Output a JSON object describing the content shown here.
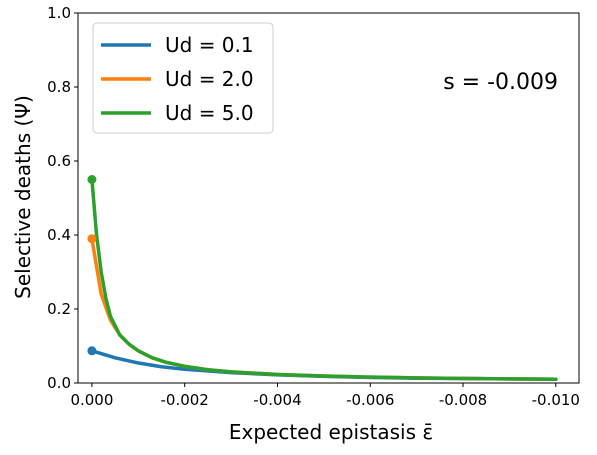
{
  "chart_data": {
    "type": "line",
    "xlabel": "Expected epistasis ε̄",
    "ylabel": "Selective deaths (Ψ)",
    "annotation": "s = -0.009",
    "xlim": [
      0.0003,
      -0.0105
    ],
    "ylim": [
      0.0,
      1.0
    ],
    "x_ticks": [
      0.0,
      -0.002,
      -0.004,
      -0.006,
      -0.008,
      -0.01
    ],
    "x_tick_labels": [
      "0.000",
      "-0.002",
      "-0.004",
      "-0.006",
      "-0.008",
      "-0.010"
    ],
    "y_ticks": [
      0.0,
      0.2,
      0.4,
      0.6,
      0.8,
      1.0
    ],
    "y_tick_labels": [
      "0.0",
      "0.2",
      "0.4",
      "0.6",
      "0.8",
      "1.0"
    ],
    "grid": false,
    "legend_position": "top-left",
    "series": [
      {
        "name": "Ud = 0.1",
        "color": "#1f77b4",
        "x": [
          0.0,
          -0.0005,
          -0.001,
          -0.0015,
          -0.002,
          -0.003,
          -0.004,
          -0.005,
          -0.006,
          -0.007,
          -0.008,
          -0.009,
          -0.01
        ],
        "y": [
          0.087,
          0.068,
          0.054,
          0.044,
          0.037,
          0.028,
          0.022,
          0.018,
          0.015,
          0.013,
          0.012,
          0.011,
          0.01
        ],
        "marker_at_start": true
      },
      {
        "name": "Ud = 2.0",
        "color": "#ff7f0e",
        "x": [
          0.0,
          -0.0002,
          -0.0004,
          -0.0006,
          -0.0008,
          -0.001,
          -0.0013,
          -0.0016,
          -0.002,
          -0.0025,
          -0.003,
          -0.004,
          -0.005,
          -0.006,
          -0.007,
          -0.008,
          -0.009,
          -0.01
        ],
        "y": [
          0.39,
          0.24,
          0.17,
          0.13,
          0.105,
          0.087,
          0.068,
          0.056,
          0.045,
          0.036,
          0.03,
          0.023,
          0.019,
          0.016,
          0.014,
          0.012,
          0.011,
          0.01
        ],
        "marker_at_start": true
      },
      {
        "name": "Ud = 5.0",
        "color": "#2ca02c",
        "x": [
          0.0,
          -0.0001,
          -0.0002,
          -0.0003,
          -0.0004,
          -0.0006,
          -0.0008,
          -0.001,
          -0.0013,
          -0.0016,
          -0.002,
          -0.0025,
          -0.003,
          -0.004,
          -0.005,
          -0.006,
          -0.007,
          -0.008,
          -0.009,
          -0.01
        ],
        "y": [
          0.55,
          0.4,
          0.3,
          0.23,
          0.18,
          0.13,
          0.105,
          0.087,
          0.068,
          0.056,
          0.045,
          0.036,
          0.03,
          0.023,
          0.019,
          0.016,
          0.014,
          0.012,
          0.011,
          0.01
        ],
        "marker_at_start": true
      }
    ]
  }
}
